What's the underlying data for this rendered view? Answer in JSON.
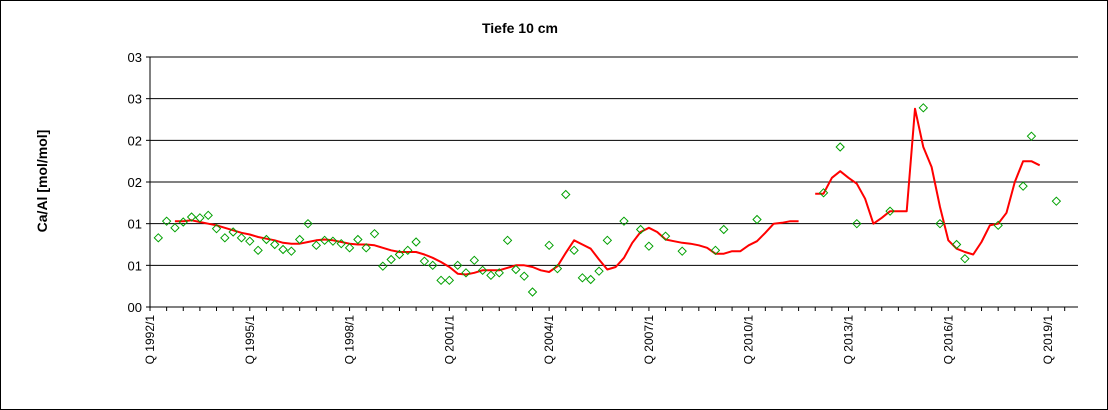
{
  "chart_data": {
    "type": "line",
    "title": "Tiefe  10 cm",
    "xlabel": "",
    "ylabel": "Ca/Al [mol/mol]",
    "y_tick_labels": [
      "00",
      "01",
      "01",
      "02",
      "02",
      "03",
      "03"
    ],
    "ylim": [
      0,
      0.03
    ],
    "x_tick_labels": [
      "Q 1992/1",
      "Q 1995/1",
      "Q 1998/1",
      "Q 2001/1",
      "Q 2004/1",
      "Q 2007/1",
      "Q 2010/1",
      "Q 2013/1",
      "Q 2016/1",
      "Q 2019/1"
    ],
    "x_tick_years": [
      1992,
      1995,
      1998,
      2001,
      2004,
      2007,
      2010,
      2013,
      2016,
      2019
    ],
    "xlim": [
      1992,
      2019.9
    ],
    "grid": "horizontal",
    "legend": "none",
    "series": [
      {
        "kind": "line",
        "color": "#ff0000",
        "segments": [
          [
            [
              1992.75,
              0.0103
            ],
            [
              1993.0,
              0.0103
            ],
            [
              1993.25,
              0.0104
            ],
            [
              1993.5,
              0.0102
            ],
            [
              1993.75,
              0.01
            ],
            [
              1994.0,
              0.0098
            ],
            [
              1994.25,
              0.0095
            ],
            [
              1994.5,
              0.0092
            ],
            [
              1994.75,
              0.0089
            ],
            [
              1995.0,
              0.0087
            ],
            [
              1995.25,
              0.0084
            ],
            [
              1995.5,
              0.0082
            ],
            [
              1995.75,
              0.008
            ],
            [
              1996.0,
              0.0077
            ],
            [
              1996.25,
              0.0076
            ],
            [
              1996.5,
              0.0076
            ],
            [
              1996.75,
              0.0078
            ],
            [
              1997.0,
              0.008
            ],
            [
              1997.25,
              0.0081
            ],
            [
              1997.5,
              0.008
            ],
            [
              1997.75,
              0.0078
            ],
            [
              1998.0,
              0.0076
            ],
            [
              1998.25,
              0.0075
            ],
            [
              1998.5,
              0.0075
            ],
            [
              1998.75,
              0.0074
            ],
            [
              1999.0,
              0.0071
            ],
            [
              1999.25,
              0.0068
            ],
            [
              1999.5,
              0.0066
            ],
            [
              1999.75,
              0.0066
            ],
            [
              2000.0,
              0.0066
            ],
            [
              2000.25,
              0.0063
            ],
            [
              2000.5,
              0.0059
            ],
            [
              2000.75,
              0.0054
            ],
            [
              2001.0,
              0.0048
            ],
            [
              2001.25,
              0.004
            ],
            [
              2001.5,
              0.0039
            ],
            [
              2001.75,
              0.0041
            ],
            [
              2002.0,
              0.0044
            ],
            [
              2002.25,
              0.0044
            ],
            [
              2002.5,
              0.0044
            ],
            [
              2002.75,
              0.0047
            ],
            [
              2003.0,
              0.005
            ],
            [
              2003.25,
              0.005
            ],
            [
              2003.5,
              0.0048
            ],
            [
              2003.75,
              0.0044
            ],
            [
              2004.0,
              0.0042
            ],
            [
              2004.25,
              0.0049
            ],
            [
              2004.5,
              0.0065
            ],
            [
              2004.75,
              0.008
            ],
            [
              2005.0,
              0.0075
            ],
            [
              2005.25,
              0.007
            ],
            [
              2005.5,
              0.0057
            ],
            [
              2005.75,
              0.0045
            ],
            [
              2006.0,
              0.0048
            ],
            [
              2006.25,
              0.0059
            ],
            [
              2006.5,
              0.0077
            ],
            [
              2006.75,
              0.009
            ],
            [
              2007.0,
              0.0095
            ],
            [
              2007.25,
              0.009
            ],
            [
              2007.5,
              0.0081
            ],
            [
              2007.75,
              0.0079
            ],
            [
              2008.0,
              0.0077
            ],
            [
              2008.25,
              0.0076
            ],
            [
              2008.5,
              0.0074
            ],
            [
              2008.75,
              0.0071
            ],
            [
              2009.0,
              0.0064
            ],
            [
              2009.25,
              0.0064
            ],
            [
              2009.5,
              0.0067
            ],
            [
              2009.75,
              0.0067
            ],
            [
              2010.0,
              0.0074
            ],
            [
              2010.25,
              0.0079
            ],
            [
              2010.5,
              0.0089
            ],
            [
              2010.75,
              0.01
            ],
            [
              2011.0,
              0.0101
            ],
            [
              2011.25,
              0.0103
            ],
            [
              2011.5,
              0.0103
            ]
          ],
          [
            [
              2012.0,
              0.0136
            ],
            [
              2012.25,
              0.0136
            ],
            [
              2012.5,
              0.0155
            ],
            [
              2012.75,
              0.0163
            ],
            [
              2013.0,
              0.0155
            ],
            [
              2013.25,
              0.0148
            ],
            [
              2013.5,
              0.013
            ],
            [
              2013.75,
              0.01
            ],
            [
              2014.0,
              0.0107
            ],
            [
              2014.25,
              0.0115
            ],
            [
              2014.5,
              0.0115
            ],
            [
              2014.75,
              0.0115
            ],
            [
              2015.0,
              0.0238
            ],
            [
              2015.25,
              0.0192
            ],
            [
              2015.5,
              0.0168
            ],
            [
              2015.75,
              0.012
            ],
            [
              2016.0,
              0.008
            ],
            [
              2016.25,
              0.007
            ],
            [
              2016.5,
              0.0066
            ],
            [
              2016.75,
              0.0063
            ],
            [
              2017.0,
              0.0078
            ],
            [
              2017.25,
              0.0098
            ],
            [
              2017.5,
              0.01
            ],
            [
              2017.75,
              0.0113
            ],
            [
              2018.0,
              0.015
            ],
            [
              2018.25,
              0.0175
            ],
            [
              2018.5,
              0.0175
            ],
            [
              2018.75,
              0.017
            ]
          ]
        ]
      },
      {
        "kind": "scatter",
        "marker": "diamond",
        "color": "#00a000",
        "points": [
          [
            1992.25,
            0.0083
          ],
          [
            1992.5,
            0.0103
          ],
          [
            1992.75,
            0.0095
          ],
          [
            1993.0,
            0.0102
          ],
          [
            1993.25,
            0.0108
          ],
          [
            1993.5,
            0.0107
          ],
          [
            1993.75,
            0.011
          ],
          [
            1994.0,
            0.0094
          ],
          [
            1994.25,
            0.0083
          ],
          [
            1994.5,
            0.009
          ],
          [
            1994.75,
            0.0083
          ],
          [
            1995.0,
            0.0079
          ],
          [
            1995.25,
            0.0068
          ],
          [
            1995.5,
            0.0081
          ],
          [
            1995.75,
            0.0075
          ],
          [
            1996.0,
            0.0069
          ],
          [
            1996.25,
            0.0067
          ],
          [
            1996.5,
            0.0081
          ],
          [
            1996.75,
            0.01
          ],
          [
            1997.0,
            0.0074
          ],
          [
            1997.25,
            0.008
          ],
          [
            1997.5,
            0.0079
          ],
          [
            1997.75,
            0.0076
          ],
          [
            1998.0,
            0.0071
          ],
          [
            1998.25,
            0.0081
          ],
          [
            1998.5,
            0.0071
          ],
          [
            1998.75,
            0.0088
          ],
          [
            1999.0,
            0.0049
          ],
          [
            1999.25,
            0.0057
          ],
          [
            1999.5,
            0.0063
          ],
          [
            1999.75,
            0.0068
          ],
          [
            2000.0,
            0.0078
          ],
          [
            2000.25,
            0.0055
          ],
          [
            2000.5,
            0.005
          ],
          [
            2000.75,
            0.0032
          ],
          [
            2001.0,
            0.0032
          ],
          [
            2001.25,
            0.005
          ],
          [
            2001.5,
            0.0041
          ],
          [
            2001.75,
            0.0056
          ],
          [
            2002.0,
            0.0044
          ],
          [
            2002.25,
            0.0038
          ],
          [
            2002.5,
            0.0041
          ],
          [
            2002.75,
            0.008
          ],
          [
            2003.0,
            0.0045
          ],
          [
            2003.25,
            0.0037
          ],
          [
            2003.5,
            0.0018
          ],
          [
            2004.0,
            0.0074
          ],
          [
            2004.25,
            0.0046
          ],
          [
            2004.5,
            0.0135
          ],
          [
            2004.75,
            0.0068
          ],
          [
            2005.0,
            0.0035
          ],
          [
            2005.25,
            0.0033
          ],
          [
            2005.5,
            0.0043
          ],
          [
            2005.75,
            0.008
          ],
          [
            2006.25,
            0.0103
          ],
          [
            2006.75,
            0.0093
          ],
          [
            2007.0,
            0.0073
          ],
          [
            2007.5,
            0.0085
          ],
          [
            2008.0,
            0.0067
          ],
          [
            2009.0,
            0.0068
          ],
          [
            2009.25,
            0.0093
          ],
          [
            2010.25,
            0.0105
          ],
          [
            2012.25,
            0.0137
          ],
          [
            2012.75,
            0.0192
          ],
          [
            2013.25,
            0.01
          ],
          [
            2014.25,
            0.0115
          ],
          [
            2015.25,
            0.0239
          ],
          [
            2015.75,
            0.01
          ],
          [
            2016.25,
            0.0075
          ],
          [
            2016.5,
            0.0058
          ],
          [
            2017.5,
            0.0098
          ],
          [
            2018.25,
            0.0145
          ],
          [
            2018.5,
            0.0205
          ],
          [
            2019.25,
            0.0127
          ]
        ]
      }
    ]
  }
}
